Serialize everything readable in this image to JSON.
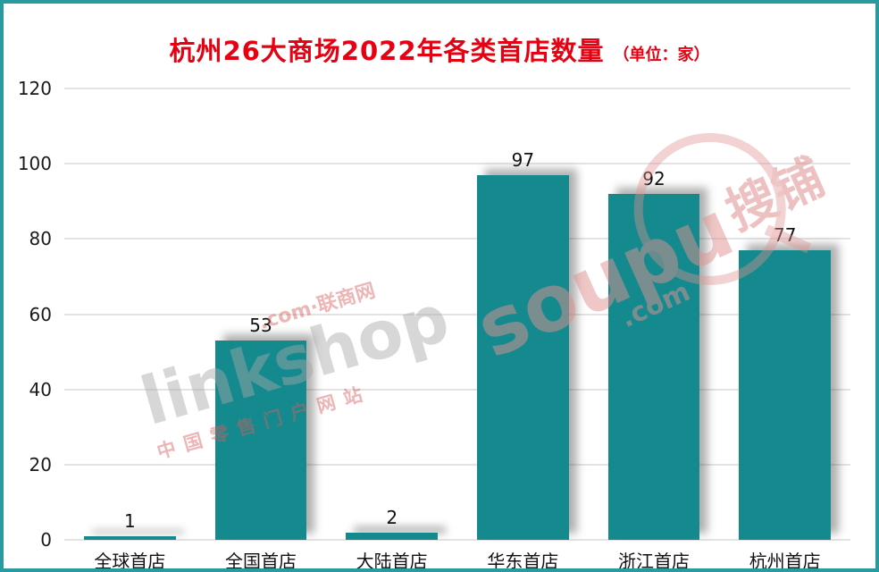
{
  "title": "杭州26大商场2022年各类首店数量",
  "unit_label": "（单位：家）",
  "chart_data": {
    "type": "bar",
    "title": "杭州26大商场2022年各类首店数量",
    "unit": "家",
    "categories": [
      "全球首店",
      "全国首店",
      "大陆首店",
      "华东首店",
      "浙江首店",
      "杭州首店"
    ],
    "values": [
      1,
      53,
      2,
      97,
      92,
      77
    ],
    "xlabel": "",
    "ylabel": "",
    "ylim": [
      0,
      120
    ],
    "yticks": [
      0,
      20,
      40,
      60,
      80,
      100,
      120
    ],
    "grid": true,
    "legend": "none",
    "bar_color": "#148a8e"
  },
  "watermarks": {
    "linkshop": {
      "top_line": ".com·联商网",
      "main": "linkshop",
      "bottom_line": "中国零售门户网站"
    },
    "soupu": {
      "main": "soupu",
      "dotcom": ".com",
      "cn": "搜铺"
    }
  },
  "colors": {
    "bar": "#148a8e",
    "title_red": "#e60012",
    "frame_border": "#2b9aa0",
    "gridline": "#e3e3e3",
    "shadow": "rgba(60,60,60,0.40)"
  }
}
